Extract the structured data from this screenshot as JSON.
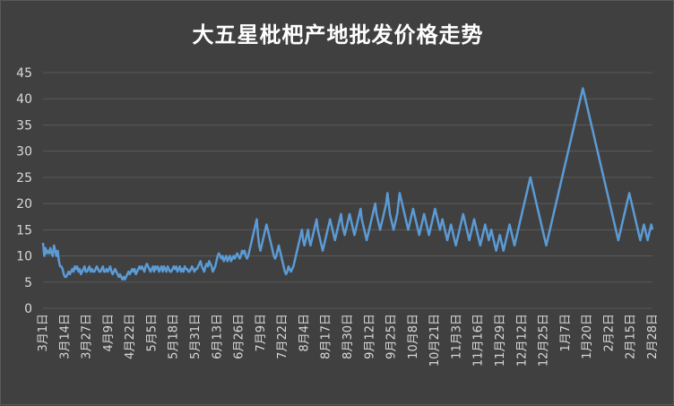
{
  "chart_data": {
    "type": "line",
    "title": "大五星枇杷产地批发价格走势",
    "ylim": [
      0,
      45
    ],
    "y_ticks": [
      "0",
      "5",
      "10",
      "15",
      "20",
      "25",
      "30",
      "35",
      "40",
      "45"
    ],
    "x_tick_labels": [
      "3月1日",
      "3月14日",
      "3月27日",
      "4月9日",
      "4月22日",
      "5月5日",
      "5月18日",
      "5月31日",
      "6月13日",
      "6月26日",
      "7月9日",
      "7月22日",
      "8月4日",
      "8月17日",
      "8月30日",
      "9月12日",
      "9月25日",
      "10月8日",
      "10月21日",
      "11月3日",
      "11月16日",
      "11月29日",
      "12月12日",
      "12月25日",
      "1月7日",
      "1月20日",
      "2月2日",
      "2月15日",
      "2月28日"
    ],
    "grid": true,
    "legend": "none",
    "line_color": "#5b9bd5",
    "series": [
      {
        "values": [
          12.5,
          10,
          11.5,
          10.5,
          11,
          10.5,
          11.5,
          10.5,
          10,
          12,
          11,
          10,
          11,
          9,
          8,
          8,
          7.5,
          6.5,
          6,
          6,
          6.5,
          7,
          6.5,
          7,
          7.5,
          7,
          8,
          7.5,
          8,
          7,
          7.5,
          6.5,
          7,
          7.5,
          8,
          7,
          7,
          7.5,
          8,
          7,
          7.5,
          7,
          7,
          7.5,
          8,
          7.5,
          7,
          7,
          7.5,
          8,
          7,
          7,
          7.5,
          7,
          7.5,
          8,
          7,
          6.5,
          7,
          7.5,
          7,
          6.5,
          6,
          6.5,
          6,
          5.5,
          6,
          5.5,
          6,
          6.5,
          7,
          6.5,
          7,
          7.5,
          7,
          7.5,
          6.5,
          7,
          7.5,
          8,
          7.5,
          8,
          7.5,
          7,
          8,
          8.5,
          8,
          7.5,
          7,
          7.5,
          8,
          7,
          8,
          7.5,
          8,
          7,
          7.5,
          8,
          7,
          8,
          7.5,
          7,
          8,
          7.5,
          7,
          7,
          7.5,
          8,
          7.5,
          8,
          7,
          7.5,
          8,
          7,
          7.5,
          7,
          8,
          7.5,
          7.5,
          7,
          7,
          7.5,
          8,
          7.5,
          7,
          7.5,
          7.5,
          8,
          8.5,
          9,
          8,
          7.5,
          7,
          8,
          8.5,
          8,
          9,
          8.5,
          8,
          7,
          7.5,
          8,
          9,
          10,
          10.5,
          10,
          9.5,
          10,
          9,
          9.5,
          10,
          9,
          9.5,
          10,
          9,
          9.5,
          10,
          9.5,
          10,
          10.5,
          10,
          9.5,
          10,
          11,
          10.5,
          11,
          10,
          9.5,
          10,
          11,
          12,
          13,
          14,
          15,
          16,
          17,
          14,
          12,
          11,
          12,
          13,
          14,
          15,
          16,
          15,
          14,
          13,
          12,
          11,
          10,
          9.5,
          10,
          11,
          12,
          11,
          10,
          9,
          8,
          7,
          6.5,
          7,
          8,
          7.5,
          7,
          7.5,
          8,
          9,
          10,
          11,
          12,
          13,
          14,
          15,
          13,
          12,
          13,
          14,
          15,
          13,
          12,
          13,
          14,
          15,
          16,
          17,
          15,
          14,
          13,
          12,
          11,
          12,
          13,
          14,
          15,
          16,
          17,
          16,
          15,
          14,
          13,
          14,
          15,
          16,
          17,
          18,
          16,
          15,
          14,
          15,
          16,
          17,
          18,
          17,
          16,
          15,
          14,
          15,
          16,
          17,
          18,
          19,
          17,
          16,
          15,
          14,
          13,
          14,
          15,
          16,
          17,
          18,
          19,
          20,
          18,
          17,
          16,
          15,
          16,
          17,
          18,
          19,
          20,
          22,
          20,
          18,
          17,
          16,
          15,
          16,
          17,
          18,
          20,
          22,
          21,
          20,
          19,
          18,
          17,
          16,
          15,
          16,
          17,
          18,
          19,
          18,
          17,
          16,
          15,
          14,
          15,
          16,
          17,
          18,
          17,
          16,
          15,
          14,
          15,
          16,
          17,
          18,
          19,
          18,
          17,
          16,
          15,
          16,
          17,
          16,
          15,
          14,
          13,
          14,
          15,
          16,
          15,
          14,
          13,
          12,
          13,
          14,
          15,
          16,
          17,
          18,
          17,
          16,
          15,
          14,
          13,
          14,
          15,
          16,
          17,
          16,
          15,
          14,
          13,
          12,
          13,
          14,
          15,
          16,
          15,
          14,
          13,
          14,
          15,
          14,
          13,
          12,
          11,
          12,
          13,
          14,
          13,
          12,
          11,
          12,
          13,
          14,
          15,
          16,
          15,
          14,
          13,
          12,
          13,
          14,
          15,
          16,
          17,
          18,
          19,
          20,
          21,
          22,
          23,
          24,
          25,
          24,
          23,
          22,
          21,
          20,
          19,
          18,
          17,
          16,
          15,
          14,
          13,
          12,
          13,
          14,
          15,
          16,
          17,
          18,
          19,
          20,
          21,
          22,
          23,
          24,
          25,
          26,
          27,
          28,
          29,
          30,
          31,
          32,
          33,
          34,
          35,
          36,
          37,
          38,
          39,
          40,
          41,
          42,
          41,
          40,
          39,
          38,
          37,
          36,
          35,
          34,
          33,
          32,
          31,
          30,
          29,
          28,
          27,
          26,
          25,
          24,
          23,
          22,
          21,
          20,
          19,
          18,
          17,
          16,
          15,
          14,
          13,
          14,
          15,
          16,
          17,
          18,
          19,
          20,
          21,
          22,
          21,
          20,
          19,
          18,
          17,
          16,
          15,
          14,
          13,
          14,
          15,
          16,
          15,
          14,
          13,
          14,
          15,
          16,
          15
        ]
      }
    ]
  }
}
